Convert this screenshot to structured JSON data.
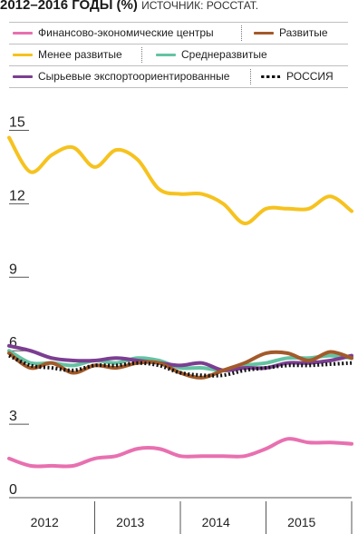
{
  "header": {
    "title": "2012–2016 ГОДЫ (%)",
    "source": "ИСТОЧНИК: РОССТАТ."
  },
  "chart_data": {
    "type": "line",
    "title": "2012–2016 ГОДЫ (%)",
    "source": "ИСТОЧНИК: РОССТАТ.",
    "x_labels": [
      "2012",
      "2013",
      "2014",
      "2015"
    ],
    "x": [
      2011.5,
      2011.75,
      2012,
      2012.25,
      2012.5,
      2012.75,
      2013,
      2013.25,
      2013.5,
      2013.75,
      2014,
      2014.25,
      2014.5,
      2014.75,
      2015,
      2015.25,
      2015.5
    ],
    "xlim": [
      2011.5,
      2015.5
    ],
    "y_ticks": [
      0,
      3,
      6,
      9,
      12,
      15
    ],
    "ylim": [
      0,
      15.5
    ],
    "legend_position": "top",
    "grid": false,
    "series": [
      {
        "name": "Финансово-экономические центры",
        "color": "#e870b0",
        "style": "solid",
        "values": [
          1.6,
          1.3,
          1.3,
          1.3,
          1.6,
          1.7,
          2.0,
          2.0,
          1.7,
          1.7,
          1.7,
          1.7,
          2.0,
          2.4,
          2.25,
          2.25,
          2.2
        ]
      },
      {
        "name": "Развитые",
        "color": "#a35a2a",
        "style": "solid",
        "values": [
          5.9,
          5.3,
          5.5,
          5.1,
          5.4,
          5.3,
          5.5,
          5.5,
          5.1,
          4.9,
          5.2,
          5.5,
          5.9,
          5.9,
          5.6,
          5.95,
          5.7
        ]
      },
      {
        "name": "Менее развитые",
        "color": "#f6c21e",
        "style": "solid",
        "values": [
          14.7,
          13.3,
          14.0,
          14.3,
          13.5,
          14.2,
          13.8,
          12.6,
          12.4,
          12.4,
          12.0,
          11.2,
          11.8,
          11.8,
          11.8,
          12.3,
          11.7
        ]
      },
      {
        "name": "Среднеразвитые",
        "color": "#63c3a2",
        "style": "solid",
        "values": [
          6.0,
          5.5,
          5.5,
          5.4,
          5.6,
          5.5,
          5.7,
          5.6,
          5.3,
          5.3,
          5.2,
          5.4,
          5.5,
          5.7,
          5.7,
          5.8,
          5.7
        ]
      },
      {
        "name": "Сырьевые экспортоориентированные",
        "color": "#7b3e91",
        "style": "solid",
        "values": [
          6.2,
          6.0,
          5.7,
          5.6,
          5.6,
          5.7,
          5.6,
          5.5,
          5.4,
          5.5,
          5.2,
          5.3,
          5.3,
          5.5,
          5.5,
          5.6,
          5.8
        ]
      },
      {
        "name": "РОССИЯ",
        "color": "#111111",
        "style": "dotted",
        "values": [
          5.8,
          5.4,
          5.3,
          5.2,
          5.4,
          5.4,
          5.5,
          5.4,
          5.1,
          5.0,
          5.0,
          5.2,
          5.3,
          5.4,
          5.4,
          5.45,
          5.5
        ]
      }
    ]
  }
}
